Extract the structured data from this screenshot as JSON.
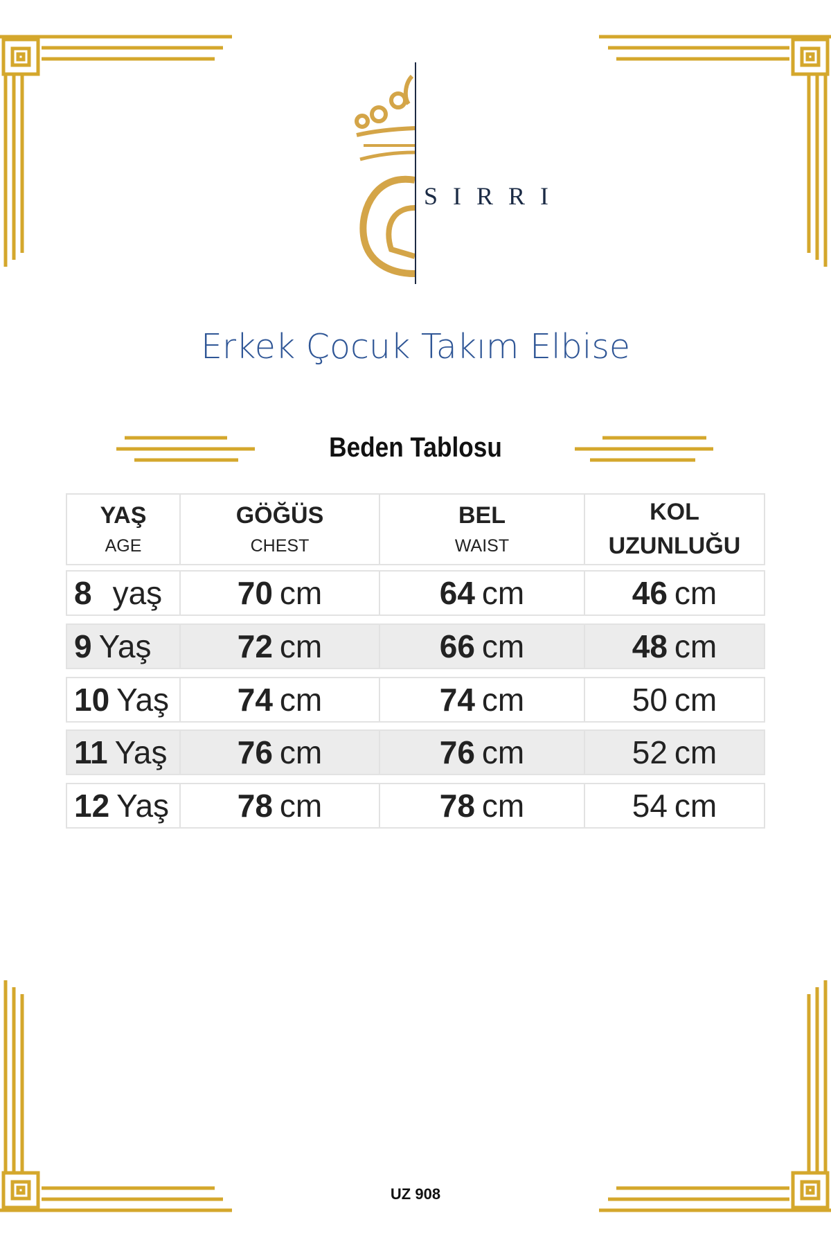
{
  "brand": {
    "name": "SIRRI"
  },
  "title": "Erkek Çocuk Takım Elbise",
  "subtitle": "Beden Tablosu",
  "colors": {
    "gold": "#d4a72c",
    "title_blue": "#2f5696",
    "navy": "#1b2b45",
    "alt_row": "#ececec"
  },
  "table": {
    "headers": [
      {
        "main": "YAŞ",
        "sub": "AGE"
      },
      {
        "main": "GÖĞÜS",
        "sub": "CHEST"
      },
      {
        "main": "BEL",
        "sub": "WAIST"
      },
      {
        "main": "KOL",
        "sub": "UZUNLUĞU"
      }
    ],
    "rows": [
      {
        "age_num": "8",
        "age_unit": "yaş",
        "chest": "70",
        "waist": "64",
        "arm": "46",
        "arm_bold": true
      },
      {
        "age_num": "9",
        "age_unit": "Yaş",
        "chest": "72",
        "waist": "66",
        "arm": "48",
        "arm_bold": true
      },
      {
        "age_num": "10",
        "age_unit": "Yaş",
        "chest": "74",
        "waist": "74",
        "arm": "50",
        "arm_bold": false
      },
      {
        "age_num": "11",
        "age_unit": "Yaş",
        "chest": "76",
        "waist": "76",
        "arm": "52",
        "arm_bold": false
      },
      {
        "age_num": "12",
        "age_unit": "Yaş",
        "chest": "78",
        "waist": "78",
        "arm": "54",
        "arm_bold": false
      }
    ],
    "unit": "cm"
  },
  "footer": "UZ 908"
}
